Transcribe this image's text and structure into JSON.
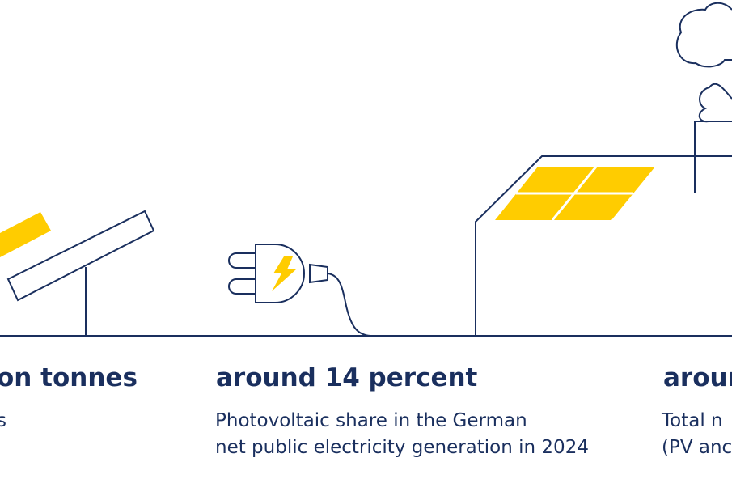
{
  "stats": [
    {
      "title": "on tonnes",
      "desc_lines": [
        "s"
      ]
    },
    {
      "title": "around 14 percent",
      "desc_lines": [
        "Photovoltaic share in the German",
        "net public electricity generation in 2024"
      ]
    },
    {
      "title": "aroun",
      "desc_lines": [
        "Total n",
        "(PV anc"
      ]
    }
  ],
  "colors": {
    "navy": "#1a2f5e",
    "yellow": "#ffcc00",
    "background": "#ffffff"
  },
  "icons": [
    "solar-panel-icon",
    "power-plug-icon",
    "house-with-solar-roof-icon",
    "chimney-smoke-icon"
  ]
}
